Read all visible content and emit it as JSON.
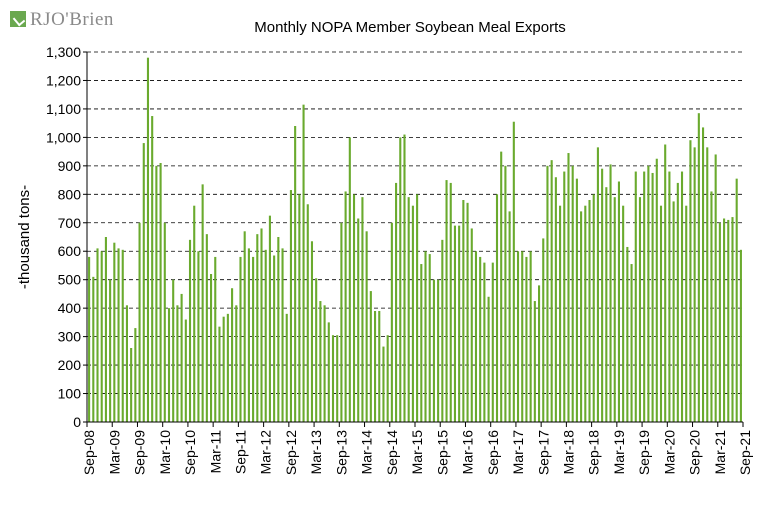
{
  "logo": {
    "text": "RJO'Brien"
  },
  "chart_data": {
    "type": "bar",
    "title": "Monthly NOPA Member Soybean Meal Exports",
    "xlabel": "",
    "ylabel": "-thousand tons-",
    "ylim": [
      0,
      1300
    ],
    "yticks": [
      0,
      100,
      200,
      300,
      400,
      500,
      600,
      700,
      800,
      900,
      1000,
      1100,
      1200,
      1300
    ],
    "ytick_labels": [
      "0",
      "100",
      "200",
      "300",
      "400",
      "500",
      "600",
      "700",
      "800",
      "900",
      "1,000",
      "1,100",
      "1,200",
      "1,300"
    ],
    "grid": true,
    "legend": "none",
    "bar_color": "#6aaa2e",
    "start_month": "2008-09",
    "xtick_labels": [
      "Sep-08",
      "Mar-09",
      "Sep-09",
      "Mar-10",
      "Sep-10",
      "Mar-11",
      "Sep-11",
      "Mar-12",
      "Sep-12",
      "Mar-13",
      "Sep-13",
      "Mar-14",
      "Sep-14",
      "Mar-15",
      "Sep-15",
      "Mar-16",
      "Sep-16",
      "Mar-17",
      "Sep-17",
      "Mar-18",
      "Sep-18",
      "Mar-19",
      "Sep-19",
      "Mar-20",
      "Sep-20",
      "Mar-21",
      "Sep-21"
    ],
    "values": [
      580,
      510,
      610,
      600,
      650,
      500,
      630,
      610,
      605,
      410,
      260,
      330,
      700,
      980,
      1280,
      1075,
      900,
      910,
      700,
      400,
      500,
      410,
      450,
      360,
      640,
      760,
      600,
      835,
      660,
      520,
      580,
      335,
      370,
      380,
      470,
      410,
      580,
      670,
      610,
      580,
      660,
      680,
      605,
      725,
      585,
      650,
      610,
      380,
      815,
      1040,
      800,
      1115,
      765,
      635,
      505,
      425,
      410,
      350,
      305,
      305,
      700,
      810,
      1000,
      800,
      715,
      790,
      670,
      460,
      390,
      390,
      265,
      305,
      700,
      840,
      1000,
      1010,
      790,
      760,
      800,
      555,
      600,
      590,
      500,
      500,
      640,
      850,
      840,
      690,
      690,
      780,
      770,
      680,
      600,
      580,
      560,
      440,
      560,
      800,
      950,
      900,
      740,
      1055,
      600,
      600,
      580,
      600,
      425,
      480,
      645,
      900,
      920,
      860,
      760,
      880,
      945,
      900,
      855,
      740,
      760,
      780,
      800,
      965,
      890,
      825,
      905,
      790,
      845,
      760,
      615,
      555,
      880,
      790,
      880,
      900,
      875,
      925,
      760,
      975,
      880,
      775,
      840,
      880,
      760,
      990,
      965,
      1085,
      1035,
      965,
      810,
      940,
      700,
      715,
      710,
      720,
      855,
      605
    ]
  }
}
